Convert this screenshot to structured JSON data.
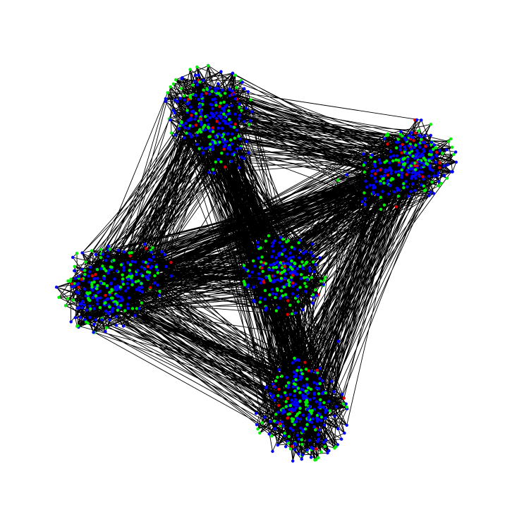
{
  "graph": {
    "type": "clustered-network",
    "cluster_count": 5,
    "clusters": [
      {
        "id": "cluster-top-left"
      },
      {
        "id": "cluster-top-right"
      },
      {
        "id": "cluster-center"
      },
      {
        "id": "cluster-left"
      },
      {
        "id": "cluster-bottom"
      }
    ],
    "node_colors": [
      "#0000ff",
      "#00ee00",
      "#dd0000"
    ],
    "edge_color": "#000000",
    "background": "#ffffff"
  }
}
